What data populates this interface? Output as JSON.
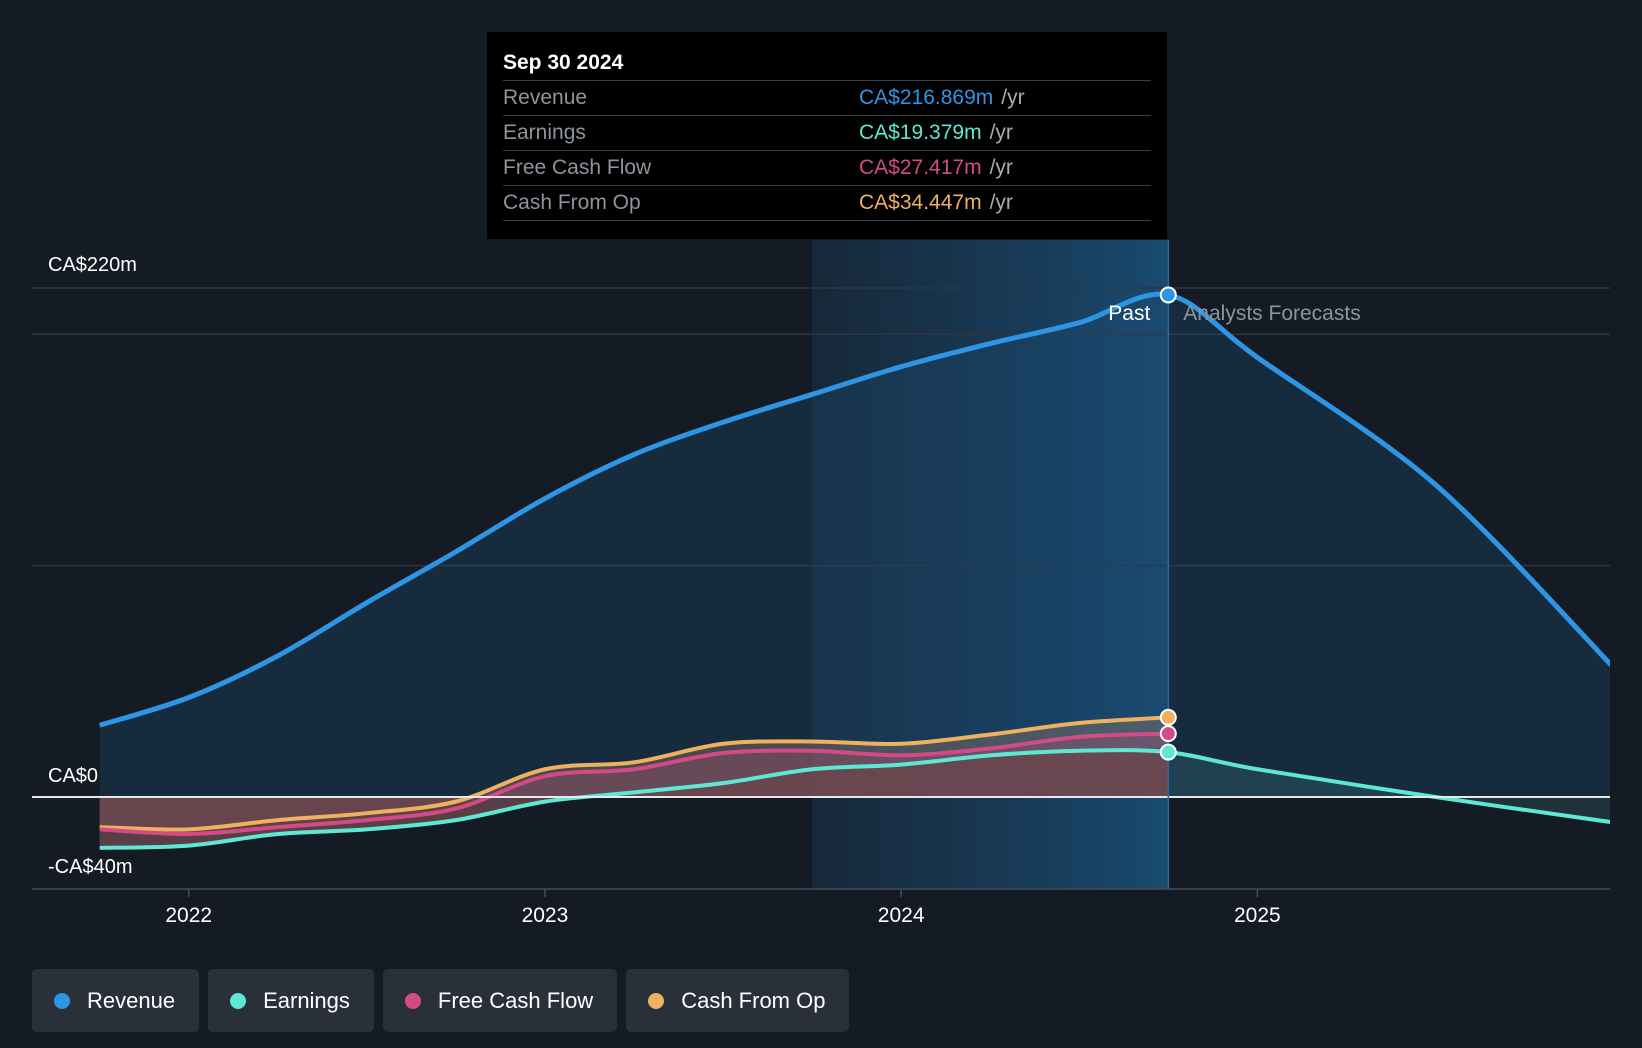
{
  "tooltip": {
    "date": "Sep 30 2024",
    "rows": [
      {
        "label": "Revenue",
        "value": "CA$216.869m",
        "unit": "/yr",
        "color": "#2d95e3"
      },
      {
        "label": "Earnings",
        "value": "CA$19.379m",
        "unit": "/yr",
        "color": "#5ee8d3"
      },
      {
        "label": "Free Cash Flow",
        "value": "CA$27.417m",
        "unit": "/yr",
        "color": "#d34a86"
      },
      {
        "label": "Cash From Op",
        "value": "CA$34.447m",
        "unit": "/yr",
        "color": "#eeb15f"
      }
    ]
  },
  "chart_data": {
    "type": "area",
    "title": "",
    "ylim": [
      -40,
      220
    ],
    "y_tick_labels": [
      {
        "value": 220,
        "label": "CA$220m"
      },
      {
        "value": 0,
        "label": "CA$0"
      },
      {
        "value": -40,
        "label": "-CA$40m"
      }
    ],
    "x_ticks": [
      {
        "value": 2022.0,
        "label": "2022"
      },
      {
        "value": 2023.0,
        "label": "2023"
      },
      {
        "value": 2024.0,
        "label": "2024"
      },
      {
        "value": 2025.0,
        "label": "2025"
      }
    ],
    "xlim": [
      2021.56,
      2025.99
    ],
    "past_label": "Past",
    "forecast_label": "Analysts Forecasts",
    "divider_x": 2024.75,
    "highlight_start_x": 2023.75,
    "series": [
      {
        "name": "Revenue",
        "color": "#2d95e3",
        "past": [
          [
            2021.75,
            31
          ],
          [
            2022.0,
            43
          ],
          [
            2022.25,
            61
          ],
          [
            2022.5,
            84
          ],
          [
            2022.75,
            106
          ],
          [
            2023.0,
            129
          ],
          [
            2023.25,
            148
          ],
          [
            2023.5,
            162
          ],
          [
            2023.75,
            174
          ],
          [
            2024.0,
            186
          ],
          [
            2024.25,
            196
          ],
          [
            2024.5,
            205
          ],
          [
            2024.75,
            217
          ]
        ],
        "forecast": [
          [
            2024.75,
            217
          ],
          [
            2025.0,
            190
          ],
          [
            2025.5,
            135
          ],
          [
            2026.0,
            56
          ]
        ]
      },
      {
        "name": "Earnings",
        "color": "#5ee8d3",
        "past": [
          [
            2021.75,
            -22
          ],
          [
            2022.0,
            -21
          ],
          [
            2022.25,
            -16
          ],
          [
            2022.5,
            -14
          ],
          [
            2022.75,
            -10
          ],
          [
            2023.0,
            -2
          ],
          [
            2023.25,
            2
          ],
          [
            2023.5,
            6
          ],
          [
            2023.75,
            12
          ],
          [
            2024.0,
            14
          ],
          [
            2024.25,
            18
          ],
          [
            2024.5,
            20
          ],
          [
            2024.75,
            19.4
          ]
        ],
        "forecast": [
          [
            2024.75,
            19.4
          ],
          [
            2025.0,
            12
          ],
          [
            2025.5,
            0
          ],
          [
            2026.0,
            -11
          ]
        ]
      },
      {
        "name": "Free Cash Flow",
        "color": "#d34a86",
        "past": [
          [
            2021.75,
            -14
          ],
          [
            2022.0,
            -16
          ],
          [
            2022.25,
            -13
          ],
          [
            2022.5,
            -10
          ],
          [
            2022.75,
            -5
          ],
          [
            2023.0,
            9
          ],
          [
            2023.25,
            12
          ],
          [
            2023.5,
            19
          ],
          [
            2023.75,
            20
          ],
          [
            2024.0,
            18
          ],
          [
            2024.25,
            21
          ],
          [
            2024.5,
            26
          ],
          [
            2024.75,
            27.4
          ]
        ],
        "forecast": []
      },
      {
        "name": "Cash From Op",
        "color": "#eeb15f",
        "past": [
          [
            2021.75,
            -13
          ],
          [
            2022.0,
            -14
          ],
          [
            2022.25,
            -10
          ],
          [
            2022.5,
            -7
          ],
          [
            2022.75,
            -2
          ],
          [
            2023.0,
            12
          ],
          [
            2023.25,
            15
          ],
          [
            2023.5,
            23
          ],
          [
            2023.75,
            24
          ],
          [
            2024.0,
            23
          ],
          [
            2024.25,
            27
          ],
          [
            2024.5,
            32
          ],
          [
            2024.75,
            34.4
          ]
        ],
        "forecast": []
      }
    ]
  },
  "legend": [
    {
      "label": "Revenue",
      "color": "#2d95e3"
    },
    {
      "label": "Earnings",
      "color": "#5ee8d3"
    },
    {
      "label": "Free Cash Flow",
      "color": "#d34a86"
    },
    {
      "label": "Cash From Op",
      "color": "#eeb15f"
    }
  ]
}
